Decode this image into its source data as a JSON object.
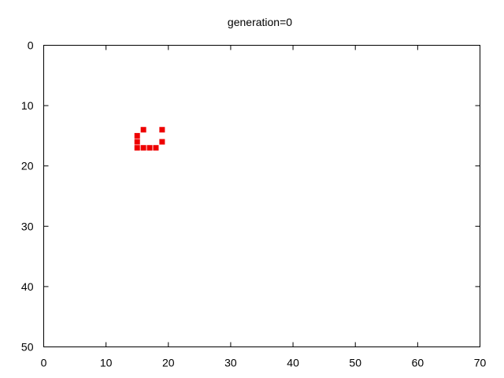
{
  "chart_data": {
    "type": "scatter",
    "title": "generation=0",
    "xlabel": "",
    "ylabel": "",
    "xlim": [
      0,
      70
    ],
    "ylim": [
      0,
      50
    ],
    "y_inverted": true,
    "grid": false,
    "legend": "none",
    "x_ticks": [
      0,
      10,
      20,
      30,
      40,
      50,
      60,
      70
    ],
    "y_ticks": [
      0,
      10,
      20,
      30,
      40,
      50
    ],
    "marker": "square",
    "color": "#ee0000",
    "points": [
      {
        "x": 16,
        "y": 14
      },
      {
        "x": 19,
        "y": 14
      },
      {
        "x": 15,
        "y": 15
      },
      {
        "x": 15,
        "y": 16
      },
      {
        "x": 19,
        "y": 16
      },
      {
        "x": 15,
        "y": 17
      },
      {
        "x": 16,
        "y": 17
      },
      {
        "x": 17,
        "y": 17
      },
      {
        "x": 18,
        "y": 17
      }
    ]
  }
}
